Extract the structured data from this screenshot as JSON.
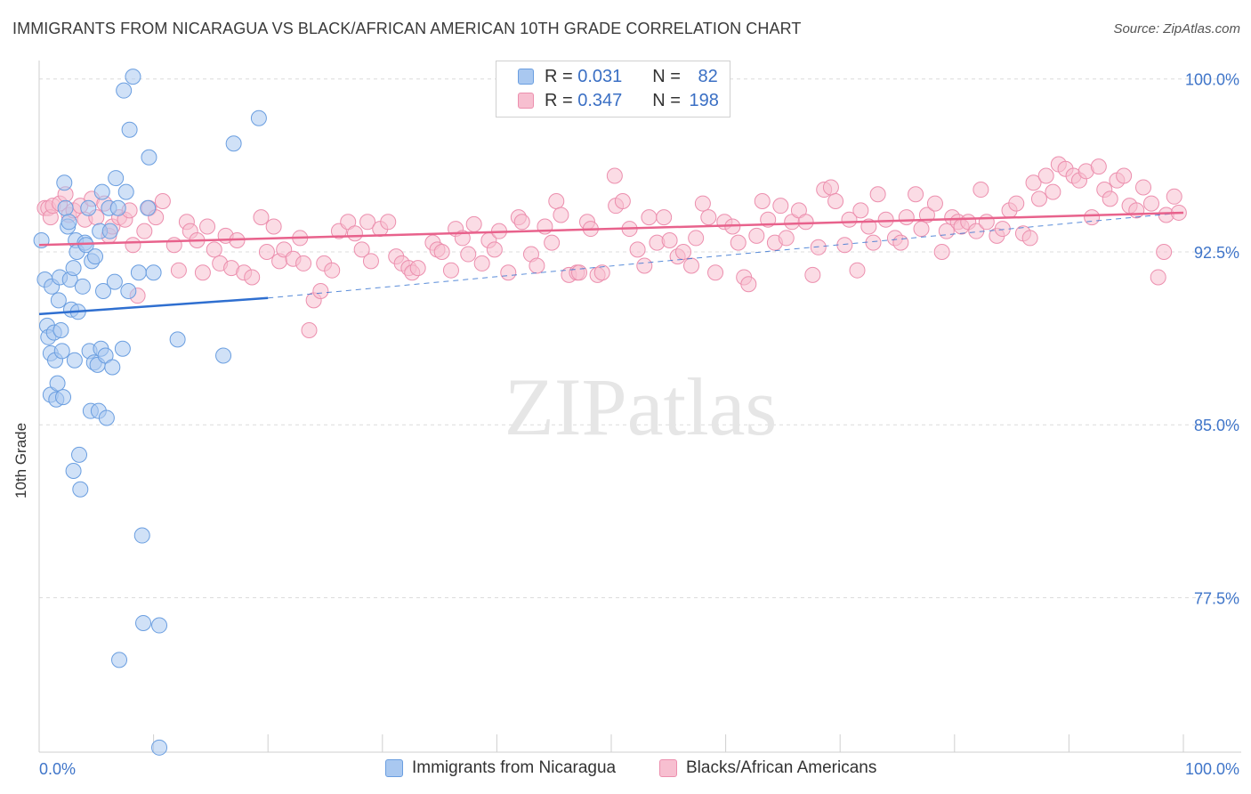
{
  "title": "IMMIGRANTS FROM NICARAGUA VS BLACK/AFRICAN AMERICAN 10TH GRADE CORRELATION CHART",
  "source": "Source: ZipAtlas.com",
  "watermark": "ZIPatlas",
  "legend": {
    "row1": {
      "r_label": "R =",
      "r_value": "0.031",
      "n_label": "N =",
      "n_value": "82"
    },
    "row2": {
      "r_label": "R =",
      "r_value": "0.347",
      "n_label": "N =",
      "n_value": "198"
    }
  },
  "bottom_legend": {
    "series1": "Immigrants from Nicaragua",
    "series2": "Blacks/African Americans"
  },
  "colors": {
    "blue_fill": "#a9c8f0",
    "blue_stroke": "#6a9ee0",
    "blue_line": "#2f6fd0",
    "pink_fill": "#f7bfd0",
    "pink_stroke": "#ec8fae",
    "pink_line": "#e8628c",
    "axis_text": "#3f75c9",
    "grid": "#dcdcdc"
  },
  "chart_data": {
    "type": "scatter",
    "title": "IMMIGRANTS FROM NICARAGUA VS BLACK/AFRICAN AMERICAN 10TH GRADE CORRELATION CHART",
    "xlabel": "",
    "ylabel": "10th Grade",
    "xlim": [
      0,
      100
    ],
    "ylim": [
      70.8,
      100.8
    ],
    "x_tick_labels": [
      "0.0%",
      "100.0%"
    ],
    "y_ticks": [
      77.5,
      85.0,
      92.5,
      100.0
    ],
    "y_tick_labels": [
      "77.5%",
      "85.0%",
      "92.5%",
      "100.0%"
    ],
    "grid": true,
    "legend_position": "top-center",
    "series": [
      {
        "name": "Immigrants from Nicaragua",
        "R": 0.031,
        "N": 82,
        "trend": {
          "x": [
            0,
            20
          ],
          "y": [
            89.8,
            90.5
          ]
        },
        "trend_dashed": {
          "x": [
            20,
            100
          ],
          "y": [
            90.5,
            94.2
          ]
        },
        "points": [
          [
            0.2,
            93.0
          ],
          [
            0.5,
            91.3
          ],
          [
            0.7,
            89.3
          ],
          [
            0.8,
            88.8
          ],
          [
            1.0,
            88.1
          ],
          [
            1.0,
            86.3
          ],
          [
            1.1,
            91.0
          ],
          [
            1.3,
            89.0
          ],
          [
            1.4,
            87.8
          ],
          [
            1.5,
            86.1
          ],
          [
            1.6,
            86.8
          ],
          [
            1.7,
            90.4
          ],
          [
            1.8,
            91.4
          ],
          [
            1.9,
            89.1
          ],
          [
            2.0,
            88.2
          ],
          [
            2.1,
            86.2
          ],
          [
            2.2,
            95.5
          ],
          [
            2.3,
            94.4
          ],
          [
            2.5,
            93.6
          ],
          [
            2.6,
            93.8
          ],
          [
            2.7,
            91.3
          ],
          [
            2.8,
            90.0
          ],
          [
            3.0,
            91.8
          ],
          [
            3.0,
            83.0
          ],
          [
            3.1,
            87.8
          ],
          [
            3.2,
            93.0
          ],
          [
            3.3,
            92.5
          ],
          [
            3.4,
            89.9
          ],
          [
            3.5,
            83.7
          ],
          [
            3.6,
            82.2
          ],
          [
            3.8,
            91.0
          ],
          [
            4.0,
            92.9
          ],
          [
            4.1,
            92.8
          ],
          [
            4.3,
            94.4
          ],
          [
            4.4,
            88.2
          ],
          [
            4.5,
            85.6
          ],
          [
            4.6,
            92.1
          ],
          [
            4.8,
            87.7
          ],
          [
            4.9,
            92.3
          ],
          [
            5.1,
            87.6
          ],
          [
            5.2,
            85.6
          ],
          [
            5.3,
            93.4
          ],
          [
            5.4,
            88.3
          ],
          [
            5.5,
            95.1
          ],
          [
            5.6,
            90.8
          ],
          [
            5.8,
            88.0
          ],
          [
            5.9,
            85.3
          ],
          [
            6.1,
            94.4
          ],
          [
            6.2,
            93.4
          ],
          [
            6.4,
            87.5
          ],
          [
            6.6,
            91.2
          ],
          [
            6.7,
            95.7
          ],
          [
            6.9,
            94.4
          ],
          [
            7.0,
            74.8
          ],
          [
            7.3,
            88.3
          ],
          [
            7.4,
            99.5
          ],
          [
            7.6,
            95.1
          ],
          [
            7.8,
            90.8
          ],
          [
            7.9,
            97.8
          ],
          [
            8.2,
            100.1
          ],
          [
            8.7,
            91.6
          ],
          [
            9.0,
            80.2
          ],
          [
            9.1,
            76.4
          ],
          [
            9.5,
            94.4
          ],
          [
            9.6,
            96.6
          ],
          [
            10.0,
            91.6
          ],
          [
            10.5,
            76.3
          ],
          [
            10.5,
            71.0
          ],
          [
            12.1,
            88.7
          ],
          [
            16.1,
            88.0
          ],
          [
            17.0,
            97.2
          ],
          [
            19.2,
            98.3
          ]
        ]
      },
      {
        "name": "Blacks/African Americans",
        "R": 0.347,
        "N": 198,
        "trend": {
          "x": [
            0,
            100
          ],
          "y": [
            92.8,
            94.2
          ]
        },
        "points": [
          [
            0.5,
            94.4
          ],
          [
            0.8,
            94.4
          ],
          [
            1.0,
            94.0
          ],
          [
            1.2,
            94.5
          ],
          [
            1.8,
            94.6
          ],
          [
            2.3,
            95.0
          ],
          [
            2.6,
            94.1
          ],
          [
            3.0,
            94.3
          ],
          [
            3.6,
            94.5
          ],
          [
            4.0,
            93.9
          ],
          [
            4.6,
            94.8
          ],
          [
            5.0,
            94.0
          ],
          [
            5.7,
            94.6
          ],
          [
            6.1,
            93.2
          ],
          [
            6.4,
            93.6
          ],
          [
            7.0,
            94.0
          ],
          [
            7.5,
            93.9
          ],
          [
            7.9,
            94.3
          ],
          [
            8.2,
            92.8
          ],
          [
            8.6,
            90.6
          ],
          [
            9.2,
            93.4
          ],
          [
            9.6,
            94.4
          ],
          [
            10.2,
            94.0
          ],
          [
            10.8,
            94.7
          ],
          [
            11.8,
            92.8
          ],
          [
            12.2,
            91.7
          ],
          [
            12.9,
            93.8
          ],
          [
            13.2,
            93.4
          ],
          [
            13.8,
            93.0
          ],
          [
            14.3,
            91.6
          ],
          [
            14.7,
            93.6
          ],
          [
            15.3,
            92.6
          ],
          [
            15.8,
            92.0
          ],
          [
            16.3,
            93.2
          ],
          [
            16.8,
            91.8
          ],
          [
            17.3,
            93.0
          ],
          [
            17.9,
            91.6
          ],
          [
            18.6,
            91.4
          ],
          [
            19.4,
            94.0
          ],
          [
            19.9,
            92.5
          ],
          [
            20.5,
            93.6
          ],
          [
            21.0,
            92.1
          ],
          [
            21.4,
            92.6
          ],
          [
            22.2,
            92.2
          ],
          [
            22.8,
            93.1
          ],
          [
            23.1,
            92.0
          ],
          [
            23.6,
            89.1
          ],
          [
            24.0,
            90.4
          ],
          [
            24.6,
            90.8
          ],
          [
            24.9,
            92.0
          ],
          [
            25.6,
            91.7
          ],
          [
            26.2,
            93.4
          ],
          [
            27.0,
            93.8
          ],
          [
            27.6,
            93.3
          ],
          [
            28.2,
            92.6
          ],
          [
            28.7,
            93.8
          ],
          [
            29.0,
            92.1
          ],
          [
            29.8,
            93.5
          ],
          [
            30.5,
            93.8
          ],
          [
            31.2,
            92.3
          ],
          [
            31.7,
            92.0
          ],
          [
            32.3,
            91.8
          ],
          [
            32.6,
            91.6
          ],
          [
            33.1,
            91.8
          ],
          [
            34.4,
            92.9
          ],
          [
            34.8,
            92.6
          ],
          [
            35.2,
            92.5
          ],
          [
            36.0,
            91.7
          ],
          [
            36.4,
            93.5
          ],
          [
            37.0,
            93.1
          ],
          [
            37.5,
            92.4
          ],
          [
            38.0,
            93.7
          ],
          [
            38.7,
            92.0
          ],
          [
            39.3,
            93.0
          ],
          [
            39.8,
            92.6
          ],
          [
            40.2,
            93.4
          ],
          [
            41.0,
            91.6
          ],
          [
            41.9,
            94.0
          ],
          [
            42.2,
            93.8
          ],
          [
            43.0,
            92.4
          ],
          [
            43.5,
            91.9
          ],
          [
            44.2,
            93.6
          ],
          [
            44.8,
            92.9
          ],
          [
            45.2,
            94.7
          ],
          [
            45.6,
            94.1
          ],
          [
            46.3,
            91.5
          ],
          [
            47.0,
            91.6
          ],
          [
            47.2,
            91.6
          ],
          [
            47.9,
            93.8
          ],
          [
            48.2,
            93.5
          ],
          [
            48.8,
            91.5
          ],
          [
            49.2,
            91.6
          ],
          [
            50.3,
            95.8
          ],
          [
            50.4,
            94.5
          ],
          [
            51.0,
            94.7
          ],
          [
            51.6,
            93.5
          ],
          [
            52.3,
            92.6
          ],
          [
            52.9,
            91.9
          ],
          [
            53.3,
            94.0
          ],
          [
            54.0,
            92.9
          ],
          [
            54.6,
            94.0
          ],
          [
            55.1,
            93.0
          ],
          [
            55.8,
            92.3
          ],
          [
            56.3,
            92.5
          ],
          [
            57.0,
            91.9
          ],
          [
            57.4,
            93.1
          ],
          [
            58.0,
            94.6
          ],
          [
            58.5,
            94.0
          ],
          [
            59.1,
            91.6
          ],
          [
            59.9,
            93.8
          ],
          [
            60.6,
            93.6
          ],
          [
            61.1,
            92.9
          ],
          [
            61.6,
            91.4
          ],
          [
            62.0,
            91.1
          ],
          [
            62.7,
            93.2
          ],
          [
            63.2,
            94.7
          ],
          [
            63.7,
            93.9
          ],
          [
            64.3,
            92.9
          ],
          [
            64.8,
            94.5
          ],
          [
            65.3,
            93.1
          ],
          [
            65.8,
            93.8
          ],
          [
            66.4,
            94.3
          ],
          [
            67.0,
            93.8
          ],
          [
            67.6,
            91.5
          ],
          [
            68.1,
            92.7
          ],
          [
            68.6,
            95.2
          ],
          [
            69.2,
            95.3
          ],
          [
            69.6,
            94.7
          ],
          [
            70.4,
            92.8
          ],
          [
            70.8,
            93.9
          ],
          [
            71.5,
            91.7
          ],
          [
            71.8,
            94.3
          ],
          [
            72.5,
            93.6
          ],
          [
            72.9,
            92.9
          ],
          [
            73.3,
            95.0
          ],
          [
            74.0,
            93.9
          ],
          [
            74.8,
            93.1
          ],
          [
            75.3,
            92.9
          ],
          [
            75.8,
            94.0
          ],
          [
            76.6,
            95.0
          ],
          [
            77.1,
            93.5
          ],
          [
            77.6,
            94.1
          ],
          [
            78.3,
            94.6
          ],
          [
            78.9,
            92.5
          ],
          [
            79.3,
            93.4
          ],
          [
            79.8,
            94.0
          ],
          [
            80.3,
            93.8
          ],
          [
            80.6,
            93.6
          ],
          [
            81.2,
            93.8
          ],
          [
            81.9,
            93.4
          ],
          [
            82.3,
            95.2
          ],
          [
            82.8,
            93.8
          ],
          [
            83.7,
            93.2
          ],
          [
            84.2,
            93.5
          ],
          [
            84.8,
            94.3
          ],
          [
            85.4,
            94.6
          ],
          [
            86.0,
            93.3
          ],
          [
            86.6,
            93.1
          ],
          [
            86.9,
            95.5
          ],
          [
            87.4,
            94.8
          ],
          [
            88.0,
            95.8
          ],
          [
            88.6,
            95.1
          ],
          [
            89.1,
            96.3
          ],
          [
            89.7,
            96.1
          ],
          [
            90.4,
            95.8
          ],
          [
            90.9,
            95.6
          ],
          [
            91.5,
            96.0
          ],
          [
            92.0,
            94.0
          ],
          [
            92.6,
            96.2
          ],
          [
            93.1,
            95.2
          ],
          [
            93.6,
            94.8
          ],
          [
            94.2,
            95.6
          ],
          [
            94.8,
            95.8
          ],
          [
            95.3,
            94.5
          ],
          [
            95.9,
            94.3
          ],
          [
            96.5,
            95.3
          ],
          [
            97.2,
            94.6
          ],
          [
            97.8,
            91.4
          ],
          [
            98.3,
            92.5
          ],
          [
            98.5,
            94.1
          ],
          [
            99.2,
            94.9
          ],
          [
            99.6,
            94.2
          ]
        ]
      }
    ]
  }
}
